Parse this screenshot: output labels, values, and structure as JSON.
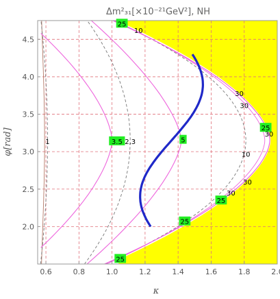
{
  "chart_data": {
    "type": "contour",
    "title": "Δm²₃₁[×10⁻²¹GeV²], NH",
    "xlabel": "κ",
    "ylabel": "φ[rad]",
    "xlim": [
      0.55,
      2.0
    ],
    "ylim": [
      1.5,
      4.75
    ],
    "xticks": [
      "0.6",
      "0.8",
      "1.0",
      "1.2",
      "1.4",
      "1.6",
      "1.8",
      "2.0"
    ],
    "yticks": [
      "2.0",
      "2.5",
      "3.0",
      "3.5",
      "4.0",
      "4.5"
    ],
    "grid": "dashed",
    "excluded_region_color": "#ffff00",
    "labels": [
      {
        "text": "25",
        "x": 1.06,
        "y": 4.71,
        "boxed": true
      },
      {
        "text": "10",
        "x": 1.16,
        "y": 4.62,
        "boxed": false
      },
      {
        "text": "30",
        "x": 1.77,
        "y": 3.78,
        "boxed": false
      },
      {
        "text": "30",
        "x": 1.8,
        "y": 3.62,
        "boxed": false
      },
      {
        "text": "1",
        "x": 0.61,
        "y": 3.14,
        "boxed": false
      },
      {
        "text": "3.5",
        "x": 1.03,
        "y": 3.14,
        "boxed": true
      },
      {
        "text": "2,3",
        "x": 1.11,
        "y": 3.14,
        "boxed": false
      },
      {
        "text": "5",
        "x": 1.43,
        "y": 3.16,
        "boxed": true
      },
      {
        "text": "25",
        "x": 1.93,
        "y": 3.32,
        "boxed": true
      },
      {
        "text": "30",
        "x": 1.95,
        "y": 3.24,
        "boxed": false
      },
      {
        "text": "10",
        "x": 1.81,
        "y": 2.97,
        "boxed": false
      },
      {
        "text": "30",
        "x": 1.82,
        "y": 2.6,
        "boxed": false
      },
      {
        "text": "30",
        "x": 1.72,
        "y": 2.45,
        "boxed": false
      },
      {
        "text": "25",
        "x": 1.66,
        "y": 2.35,
        "boxed": true
      },
      {
        "text": "25",
        "x": 1.44,
        "y": 2.07,
        "boxed": true
      },
      {
        "text": "25",
        "x": 1.05,
        "y": 1.57,
        "boxed": true
      }
    ],
    "colors": {
      "plot_border": "#999999",
      "grid": "#e0707a",
      "thick_contour": "#1f28c8",
      "pink_contours": "#ee66dd",
      "gray_contours": "#777777",
      "thin_line": "#b47a68",
      "label_box": "#22ee22",
      "text": "#666666"
    }
  }
}
